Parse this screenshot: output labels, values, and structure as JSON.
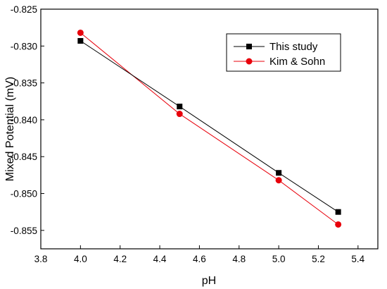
{
  "chart_data": {
    "type": "line",
    "xlabel": "pH",
    "ylabel": "Mixed Potential (mV)",
    "xlim": [
      3.8,
      5.5
    ],
    "ylim": [
      -0.8575,
      -0.825
    ],
    "xticks": [
      3.8,
      4.0,
      4.2,
      4.4,
      4.6,
      4.8,
      5.0,
      5.2,
      5.4
    ],
    "xtick_labels": [
      "3.8",
      "4.0",
      "4.2",
      "4.4",
      "4.6",
      "4.8",
      "5.0",
      "5.2",
      "5.4"
    ],
    "yticks": [
      -0.825,
      -0.83,
      -0.835,
      -0.84,
      -0.845,
      -0.85,
      -0.855
    ],
    "ytick_labels": [
      "-0.825",
      "-0.830",
      "-0.835",
      "-0.840",
      "-0.845",
      "-0.850",
      "-0.855"
    ],
    "grid": false,
    "legend_position": "top-right",
    "series": [
      {
        "name": "This study",
        "color": "#000000",
        "marker": "square",
        "x": [
          4.0,
          4.5,
          5.0,
          5.3
        ],
        "y": [
          -0.8293,
          -0.8382,
          -0.8472,
          -0.8525
        ]
      },
      {
        "name": "Kim & Sohn",
        "color": "#e8000b",
        "marker": "circle",
        "x": [
          4.0,
          4.5,
          5.0,
          5.3
        ],
        "y": [
          -0.8282,
          -0.8392,
          -0.8482,
          -0.8542
        ]
      }
    ]
  }
}
